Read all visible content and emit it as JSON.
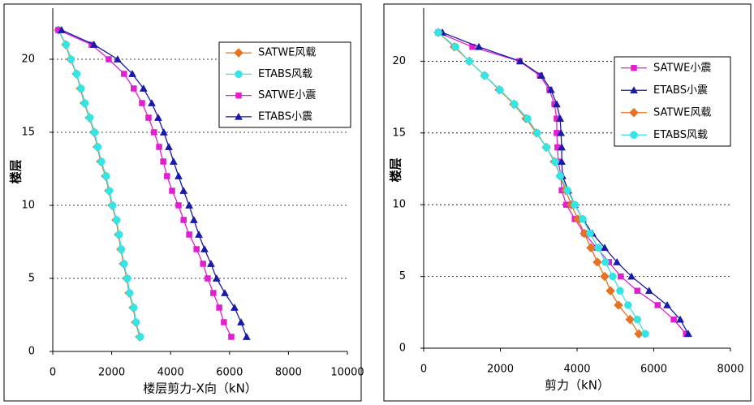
{
  "chart_data": [
    {
      "type": "line",
      "xlabel": "楼层剪力-X向（kN）",
      "ylabel": "楼层",
      "xlim": [
        0,
        10000
      ],
      "xticks": [
        0,
        2000,
        4000,
        6000,
        8000,
        10000
      ],
      "ylim": [
        0,
        23.5
      ],
      "yticks": [
        0,
        5,
        10,
        15,
        20
      ],
      "grid": true,
      "legend": "upper right",
      "y": [
        22,
        21,
        20,
        19,
        18,
        17,
        16,
        15,
        14,
        13,
        12,
        11,
        10,
        9,
        8,
        7,
        6,
        5,
        4,
        3,
        2,
        1
      ],
      "series": [
        {
          "name": "SATWE风载",
          "color": "#e57320",
          "marker": "diamond",
          "values": [
            190,
            440,
            600,
            800,
            940,
            1070,
            1240,
            1400,
            1510,
            1625,
            1790,
            1900,
            2010,
            2150,
            2230,
            2310,
            2400,
            2510,
            2590,
            2730,
            2810,
            2950
          ]
        },
        {
          "name": "ETABS风载",
          "color": "#33e5e5",
          "marker": "circle",
          "values": [
            200,
            450,
            620,
            810,
            960,
            1090,
            1260,
            1420,
            1530,
            1650,
            1810,
            1920,
            2030,
            2170,
            2250,
            2330,
            2420,
            2530,
            2610,
            2750,
            2830,
            2970
          ]
        },
        {
          "name": "SATWE小震",
          "color": "#e020d0",
          "marker": "square",
          "values": [
            190,
            1320,
            1900,
            2420,
            2750,
            3030,
            3250,
            3440,
            3610,
            3750,
            3880,
            4050,
            4270,
            4440,
            4630,
            4880,
            5100,
            5260,
            5450,
            5650,
            5810,
            6060
          ]
        },
        {
          "name": "ETABS小震",
          "color": "#1a1aa8",
          "marker": "triangle",
          "values": [
            300,
            1400,
            2200,
            2700,
            3080,
            3360,
            3580,
            3770,
            3940,
            4100,
            4270,
            4440,
            4630,
            4790,
            4960,
            5150,
            5370,
            5560,
            5840,
            6170,
            6390,
            6580
          ]
        }
      ]
    },
    {
      "type": "line",
      "xlabel": "剪力（kN）",
      "ylabel": "楼层",
      "xlim": [
        0,
        8000
      ],
      "xticks": [
        0,
        2000,
        4000,
        6000,
        8000
      ],
      "ylim": [
        0,
        23.7
      ],
      "yticks": [
        0,
        5,
        10,
        15,
        20
      ],
      "grid": true,
      "legend": "upper right",
      "y": [
        22,
        21,
        20,
        19,
        18,
        17,
        16,
        15,
        14,
        13,
        12,
        11,
        10,
        9,
        8,
        7,
        6,
        5,
        4,
        3,
        2,
        1
      ],
      "series": [
        {
          "name": "SATWE小震",
          "color": "#e020d0",
          "marker": "square",
          "values": [
            380,
            1270,
            2500,
            3030,
            3280,
            3410,
            3470,
            3470,
            3490,
            3510,
            3580,
            3600,
            3720,
            3940,
            4190,
            4510,
            4830,
            5140,
            5570,
            6100,
            6520,
            6840
          ]
        },
        {
          "name": "ETABS小震",
          "color": "#1a1aa8",
          "marker": "triangle",
          "values": [
            490,
            1440,
            2520,
            3070,
            3320,
            3470,
            3560,
            3580,
            3600,
            3600,
            3620,
            3770,
            3940,
            4150,
            4400,
            4720,
            5040,
            5420,
            5880,
            6350,
            6690,
            6900
          ]
        },
        {
          "name": "SATWE风载",
          "color": "#e57320",
          "marker": "diamond",
          "values": [
            380,
            800,
            1190,
            1590,
            1970,
            2350,
            2670,
            2940,
            3200,
            3410,
            3560,
            3700,
            3850,
            4020,
            4190,
            4360,
            4530,
            4720,
            4870,
            5080,
            5380,
            5610
          ]
        },
        {
          "name": "ETABS风载",
          "color": "#33e5e5",
          "marker": "circle",
          "values": [
            380,
            830,
            1190,
            1590,
            1990,
            2370,
            2710,
            2960,
            3200,
            3430,
            3560,
            3750,
            3940,
            4150,
            4340,
            4550,
            4740,
            4930,
            5120,
            5330,
            5570,
            5780
          ]
        }
      ]
    }
  ]
}
